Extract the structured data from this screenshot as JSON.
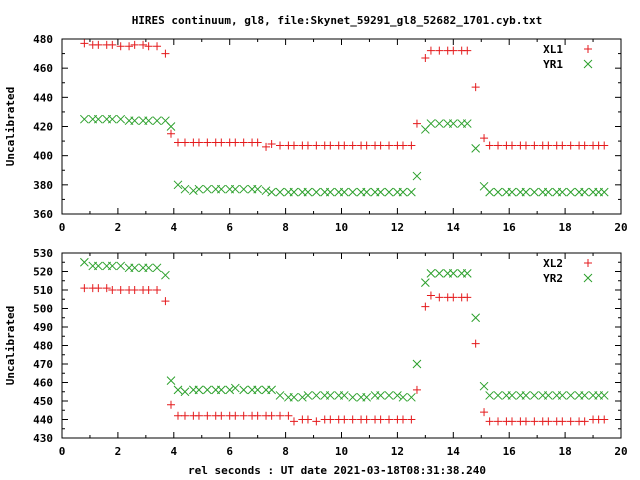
{
  "title": "HIRES continuum, gl8, file:Skynet_59291_gl8_52682_1701.cyb.txt",
  "xlabel": "rel seconds : UT date 2021-03-18T08:31:38.240",
  "colors": {
    "red": "#e41a1c",
    "green": "#2ca02c"
  },
  "chart_data": [
    {
      "type": "scatter",
      "ylabel": "Uncalibrated",
      "xlim": [
        0,
        20
      ],
      "ylim": [
        360,
        480
      ],
      "xticks": [
        0,
        2,
        4,
        6,
        8,
        10,
        12,
        14,
        16,
        18,
        20
      ],
      "yticks": [
        360,
        380,
        400,
        420,
        440,
        460,
        480
      ],
      "legend": "top-right",
      "grid": false,
      "x": [
        0.8,
        1.1,
        1.3,
        1.6,
        1.8,
        2.1,
        2.4,
        2.6,
        2.9,
        3.1,
        3.4,
        3.7,
        3.9,
        4.15,
        4.4,
        4.7,
        4.9,
        5.2,
        5.5,
        5.7,
        6.0,
        6.2,
        6.5,
        6.8,
        7.0,
        7.3,
        7.5,
        7.8,
        8.1,
        8.3,
        8.6,
        8.8,
        9.1,
        9.4,
        9.6,
        9.9,
        10.1,
        10.4,
        10.7,
        10.9,
        11.2,
        11.4,
        11.7,
        12.0,
        12.2,
        12.5,
        12.7,
        13.0,
        13.2,
        13.5,
        13.8,
        14.0,
        14.3,
        14.5,
        14.8,
        15.1,
        15.3,
        15.6,
        15.9,
        16.1,
        16.4,
        16.6,
        16.9,
        17.2,
        17.4,
        17.7,
        17.9,
        18.2,
        18.5,
        18.7,
        19.0,
        19.2,
        19.4
      ],
      "series": [
        {
          "name": "XL1",
          "marker": "+",
          "color": "#e41a1c",
          "values": [
            477,
            476,
            476,
            476,
            476,
            475,
            475,
            476,
            476,
            475,
            475,
            470,
            415,
            409,
            409,
            409,
            409,
            409,
            409,
            409,
            409,
            409,
            409,
            409,
            409,
            406,
            408,
            407,
            407,
            407,
            407,
            407,
            407,
            407,
            407,
            407,
            407,
            407,
            407,
            407,
            407,
            407,
            407,
            407,
            407,
            407,
            422,
            467,
            472,
            472,
            472,
            472,
            472,
            472,
            447,
            412,
            407,
            407,
            407,
            407,
            407,
            407,
            407,
            407,
            407,
            407,
            407,
            407,
            407,
            407,
            407,
            407,
            407
          ]
        },
        {
          "name": "YR1",
          "marker": "x",
          "color": "#2ca02c",
          "values": [
            425,
            425,
            425,
            425,
            425,
            425,
            424,
            424,
            424,
            424,
            424,
            424,
            420,
            380,
            377,
            376,
            377,
            377,
            377,
            377,
            377,
            377,
            377,
            377,
            377,
            376,
            375,
            375,
            375,
            375,
            375,
            375,
            375,
            375,
            375,
            375,
            375,
            375,
            375,
            375,
            375,
            375,
            375,
            375,
            375,
            375,
            386,
            418,
            422,
            422,
            422,
            422,
            422,
            422,
            405,
            379,
            375,
            375,
            375,
            375,
            375,
            375,
            375,
            375,
            375,
            375,
            375,
            375,
            375,
            375,
            375,
            375,
            375
          ]
        }
      ]
    },
    {
      "type": "scatter",
      "ylabel": "Uncalibrated",
      "xlim": [
        0,
        20
      ],
      "ylim": [
        430,
        530
      ],
      "xticks": [
        0,
        2,
        4,
        6,
        8,
        10,
        12,
        14,
        16,
        18,
        20
      ],
      "yticks": [
        430,
        440,
        450,
        460,
        470,
        480,
        490,
        500,
        510,
        520,
        530
      ],
      "legend": "top-right",
      "grid": false,
      "x": [
        0.8,
        1.1,
        1.3,
        1.6,
        1.8,
        2.1,
        2.4,
        2.6,
        2.9,
        3.1,
        3.4,
        3.7,
        3.9,
        4.15,
        4.4,
        4.7,
        4.9,
        5.2,
        5.5,
        5.7,
        6.0,
        6.2,
        6.5,
        6.8,
        7.0,
        7.3,
        7.5,
        7.8,
        8.1,
        8.3,
        8.6,
        8.8,
        9.1,
        9.4,
        9.6,
        9.9,
        10.1,
        10.4,
        10.7,
        10.9,
        11.2,
        11.4,
        11.7,
        12.0,
        12.2,
        12.5,
        12.7,
        13.0,
        13.2,
        13.5,
        13.8,
        14.0,
        14.3,
        14.5,
        14.8,
        15.1,
        15.3,
        15.6,
        15.9,
        16.1,
        16.4,
        16.6,
        16.9,
        17.2,
        17.4,
        17.7,
        17.9,
        18.2,
        18.5,
        18.7,
        19.0,
        19.2,
        19.4
      ],
      "series": [
        {
          "name": "XL2",
          "marker": "+",
          "color": "#e41a1c",
          "values": [
            511,
            511,
            511,
            511,
            510,
            510,
            510,
            510,
            510,
            510,
            510,
            504,
            448,
            442,
            442,
            442,
            442,
            442,
            442,
            442,
            442,
            442,
            442,
            442,
            442,
            442,
            442,
            442,
            442,
            439,
            440,
            440,
            439,
            440,
            440,
            440,
            440,
            440,
            440,
            440,
            440,
            440,
            440,
            440,
            440,
            440,
            456,
            501,
            507,
            506,
            506,
            506,
            506,
            506,
            481,
            444,
            439,
            439,
            439,
            439,
            439,
            439,
            439,
            439,
            439,
            439,
            439,
            439,
            439,
            439,
            440,
            440,
            440
          ]
        },
        {
          "name": "YR2",
          "marker": "x",
          "color": "#2ca02c",
          "values": [
            525,
            523,
            523,
            523,
            523,
            523,
            522,
            522,
            522,
            522,
            522,
            518,
            461,
            456,
            455,
            456,
            456,
            456,
            456,
            456,
            456,
            457,
            456,
            456,
            456,
            456,
            456,
            453,
            452,
            452,
            452,
            453,
            453,
            453,
            453,
            453,
            453,
            452,
            452,
            452,
            453,
            453,
            453,
            453,
            452,
            452,
            470,
            514,
            519,
            519,
            519,
            519,
            519,
            519,
            495,
            458,
            453,
            453,
            453,
            453,
            453,
            453,
            453,
            453,
            453,
            453,
            453,
            453,
            453,
            453,
            453,
            453,
            453
          ]
        }
      ]
    }
  ]
}
